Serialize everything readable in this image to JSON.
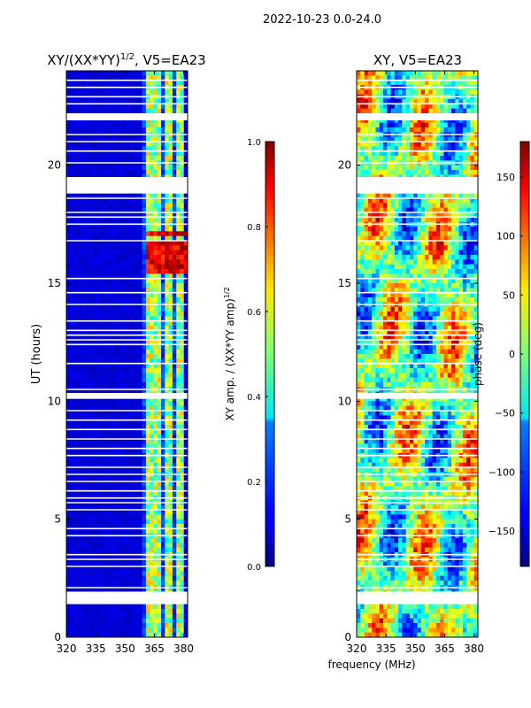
{
  "suptitle": "2022-10-23 0.0-24.0",
  "shared_xlabel": "frequency (MHz)",
  "chart_data": [
    {
      "type": "heatmap",
      "title": "XY/(XX*YY)^1/2, V5=EA23",
      "title_main": "XY/(XX*YY)",
      "title_sup": "1/2",
      "title_tail": ", V5=EA23",
      "ylabel": "UT (hours)",
      "xlim": [
        320,
        382
      ],
      "ylim": [
        0,
        24
      ],
      "xticks": [
        320,
        335,
        350,
        365,
        380
      ],
      "yticks": [
        0,
        5,
        10,
        15,
        20
      ],
      "colorbar": {
        "label_main": "XY amp. / (XX*YY amp)",
        "label_sup": "1/2",
        "range": [
          0.0,
          1.0
        ],
        "ticks": [
          "0.0",
          "0.2",
          "0.4",
          "0.6",
          "0.8",
          "1.0"
        ],
        "colormap": "jet"
      },
      "bright_channels_mhz": [
        361,
        362.5,
        364,
        366,
        368,
        370.5,
        372,
        374,
        377,
        379
      ],
      "hot_rows_hours": [
        15.6,
        15.9,
        16.2,
        16.6,
        17.1
      ]
    },
    {
      "type": "heatmap",
      "title": "XY, V5=EA23",
      "xlim": [
        320,
        382
      ],
      "ylim": [
        0,
        24
      ],
      "xticks": [
        320,
        335,
        350,
        365,
        380
      ],
      "yticks": [
        0,
        5,
        10,
        15,
        20
      ],
      "colorbar": {
        "label": "phase (deg)",
        "range": [
          -180,
          180
        ],
        "ticks": [
          "150",
          "100",
          "50",
          "0",
          "−50",
          "−100",
          "−150"
        ],
        "tick_values": [
          150,
          100,
          50,
          0,
          -50,
          -100,
          -150
        ],
        "colormap": "jet"
      }
    }
  ],
  "flagged_ut_ranges_hours": [
    [
      1.4,
      1.9
    ],
    [
      18.8,
      19.5
    ],
    [
      21.9,
      22.2
    ],
    [
      10.1,
      10.35
    ]
  ],
  "flagged_ut_lines_hours": [
    1.9,
    2.1,
    3.0,
    3.3,
    3.5,
    4.3,
    4.6,
    5.4,
    5.7,
    5.9,
    6.2,
    6.6,
    6.9,
    7.2,
    7.7,
    8.0,
    8.4,
    8.8,
    9.2,
    9.6,
    10.5,
    11.6,
    12.4,
    12.6,
    12.8,
    13.0,
    13.4,
    14.1,
    14.6,
    15.2,
    16.8,
    17.5,
    17.8,
    18.0,
    18.6,
    20.1,
    20.6,
    21.0,
    21.3,
    22.6,
    22.9,
    23.3,
    23.6
  ]
}
